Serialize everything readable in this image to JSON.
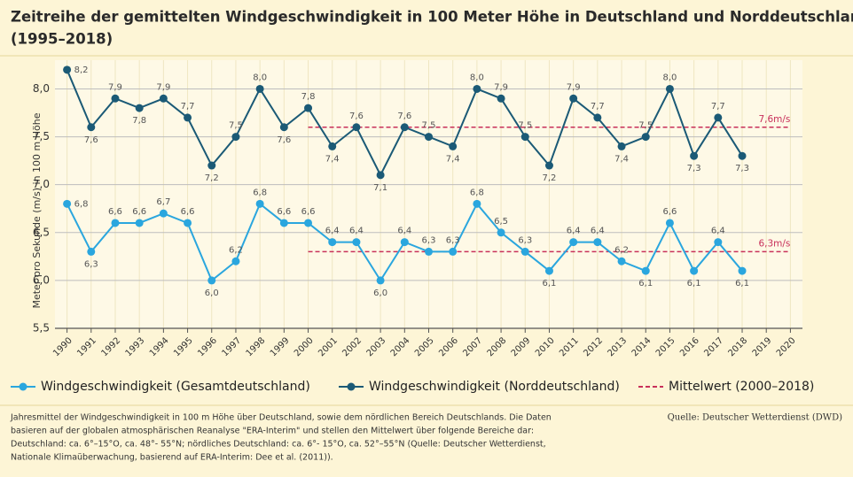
{
  "chart_data": {
    "type": "line",
    "title": [
      "Zeitreihe der gemittelten Windgeschwindigkeit in 100 Meter Höhe in Deutschland und Norddeutschland",
      "(1995–2018)"
    ],
    "y_label": "Meter pro Sekunde (m/s) in 100 m Höhe",
    "categories": [
      "1990",
      "1991",
      "1992",
      "1993",
      "1994",
      "1995",
      "1996",
      "1997",
      "1998",
      "1999",
      "2000",
      "2001",
      "2002",
      "2003",
      "2004",
      "2005",
      "2006",
      "2007",
      "2008",
      "2009",
      "2010",
      "2011",
      "2012",
      "2013",
      "2014",
      "2015",
      "2016",
      "2017",
      "2018",
      "2019",
      "2020"
    ],
    "ylim": [
      5.5,
      8.3
    ],
    "yticks": [
      {
        "value": 5.5,
        "label": "5,5"
      },
      {
        "value": 6.0,
        "label": "6,0"
      },
      {
        "value": 6.5,
        "label": "6,5"
      },
      {
        "value": 7.0,
        "label": "7,0"
      },
      {
        "value": 7.5,
        "label": "7,5"
      },
      {
        "value": 8.0,
        "label": "8,0"
      }
    ],
    "grid": true,
    "series": [
      {
        "name": "Windgeschwindigkeit (Gesamtdeutschland)",
        "color": "#2aa6de",
        "values": [
          6.8,
          6.3,
          6.6,
          6.6,
          6.7,
          6.6,
          6.0,
          6.2,
          6.8,
          6.6,
          6.6,
          6.4,
          6.4,
          6.0,
          6.4,
          6.3,
          6.3,
          6.8,
          6.5,
          6.3,
          6.1,
          6.4,
          6.4,
          6.2,
          6.1,
          6.6,
          6.1,
          6.4,
          6.1,
          null,
          null
        ],
        "value_labels": [
          "6,8",
          "6,3",
          "6,6",
          "6,6",
          "6,7",
          "6,6",
          "6,0",
          "6,2",
          "6,8",
          "6,6",
          "6,6",
          "6,4",
          "6,4",
          "6,0",
          "6,4",
          "6,3",
          "6,3",
          "6,8",
          "6,5",
          "6,3",
          "6,1",
          "6,4",
          "6,4",
          "6,2",
          "6,1",
          "6,6",
          "6,1",
          "6,4",
          "6,1",
          null,
          null
        ]
      },
      {
        "name": "Windgeschwindigkeit (Norddeutschland)",
        "color": "#1b5a76",
        "values": [
          8.2,
          7.6,
          7.9,
          7.8,
          7.9,
          7.7,
          7.2,
          7.5,
          8.0,
          7.6,
          7.8,
          7.4,
          7.6,
          7.1,
          7.6,
          7.5,
          7.4,
          8.0,
          7.9,
          7.5,
          7.2,
          7.9,
          7.7,
          7.4,
          7.5,
          8.0,
          7.3,
          7.7,
          7.3,
          null,
          null
        ],
        "value_labels": [
          "8,2",
          "7,6",
          "7,9",
          "7,8",
          "7,9",
          "7,7",
          "7,2",
          "7,5",
          "8,0",
          "7,6",
          "7,8",
          "7,4",
          "7,6",
          "7,1",
          "7,6",
          "7,5",
          "7,4",
          "8,0",
          "7,9",
          "7,5",
          "7,2",
          "7,9",
          "7,7",
          "7,4",
          "7,5",
          "8,0",
          "7,3",
          "7,7",
          "7,3",
          null,
          null
        ]
      }
    ],
    "mean_legend": "Mittelwert (2000–2018)",
    "mean_color": "#c8305a",
    "mean_lines": [
      {
        "value": 7.6,
        "label": "7,6m/s",
        "from": "2000",
        "to": "2020"
      },
      {
        "value": 6.3,
        "label": "6,3m/s",
        "from": "2000",
        "to": "2020"
      }
    ],
    "footnote": [
      "Jahresmittel der Windgeschwindigkeit in 100 m Höhe über Deutschland, sowie dem nördlichen Bereich Deutschlands. Die Daten",
      "basieren auf der globalen atmosphärischen Reanalyse \"ERA-Interim\" und stellen den Mittelwert über folgende Bereiche dar:",
      "Deutschland: ca. 6°–15°O, ca. 48°- 55°N; nördliches Deutschland: ca. 6°- 15°O, ca. 52°–55°N (Quelle: Deutscher Wetterdienst,",
      "Nationale Klimaüberwachung, basierend auf ERA-Interim: Dee et al. (2011))."
    ],
    "source": "Quelle: Deutscher Wetterdienst (DWD)"
  }
}
